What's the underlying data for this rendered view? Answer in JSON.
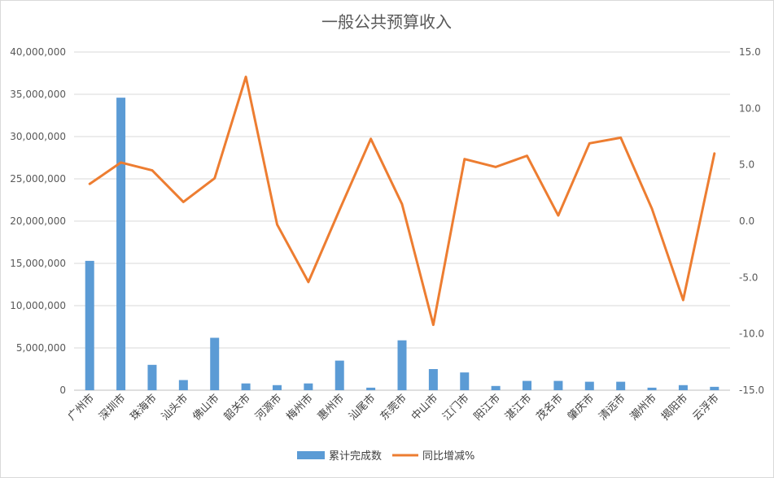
{
  "chart_data": {
    "type": "bar+line",
    "title": "一般公共预算收入",
    "categories": [
      "广州市",
      "深圳市",
      "珠海市",
      "汕头市",
      "佛山市",
      "韶关市",
      "河源市",
      "梅州市",
      "惠州市",
      "汕尾市",
      "东莞市",
      "中山市",
      "江门市",
      "阳江市",
      "湛江市",
      "茂名市",
      "肇庆市",
      "清远市",
      "潮州市",
      "揭阳市",
      "云浮市"
    ],
    "series": [
      {
        "name": "累计完成数",
        "type": "bar",
        "axis": "left",
        "color": "#5B9BD5",
        "values": [
          15300000,
          34600000,
          3000000,
          1200000,
          6200000,
          800000,
          600000,
          800000,
          3500000,
          300000,
          5900000,
          2500000,
          2100000,
          500000,
          1100000,
          1100000,
          1000000,
          1000000,
          300000,
          600000,
          400000
        ]
      },
      {
        "name": "同比增减%",
        "type": "line",
        "axis": "right",
        "color": "#ED7D31",
        "values": [
          3.3,
          5.2,
          4.5,
          1.7,
          3.8,
          12.8,
          -0.3,
          -5.4,
          1.0,
          7.3,
          1.5,
          -9.2,
          5.5,
          4.8,
          5.8,
          0.5,
          6.9,
          7.4,
          1.1,
          -7.0,
          6.0
        ]
      }
    ],
    "y_left": {
      "min": 0,
      "max": 40000000,
      "step": 5000000,
      "ticks": [
        "0",
        "5,000,000",
        "10,000,000",
        "15,000,000",
        "20,000,000",
        "25,000,000",
        "30,000,000",
        "35,000,000",
        "40,000,000"
      ]
    },
    "y_right": {
      "min": -15,
      "max": 15,
      "step": 5,
      "ticks": [
        "-15.0",
        "-10.0",
        "-5.0",
        "0.0",
        "5.0",
        "10.0",
        "15.0"
      ]
    },
    "grid": true,
    "legend": "bottom"
  }
}
